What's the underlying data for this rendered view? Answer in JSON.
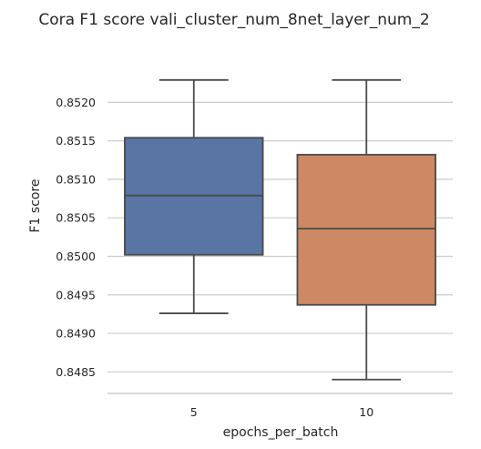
{
  "chart_data": {
    "type": "box",
    "title": "Cora F1 score vali_cluster_num_8net_layer_num_2",
    "xlabel": "epochs_per_batch",
    "ylabel": "F1 score",
    "categories": [
      "5",
      "10"
    ],
    "ylim": [
      0.84822,
      0.85295
    ],
    "yticks": [
      0.8485,
      0.849,
      0.8495,
      0.85,
      0.8505,
      0.851,
      0.8515,
      0.852
    ],
    "ytick_labels": [
      "0.8485",
      "0.8490",
      "0.8495",
      "0.8500",
      "0.8505",
      "0.8510",
      "0.8515",
      "0.8520"
    ],
    "grid": "horizontal",
    "boxes": [
      {
        "category": "5",
        "whisker_low": 0.84926,
        "q1": 0.85002,
        "median": 0.85079,
        "q3": 0.85154,
        "whisker_high": 0.85229,
        "color": "#5875a4"
      },
      {
        "category": "10",
        "whisker_low": 0.8484,
        "q1": 0.84937,
        "median": 0.85036,
        "q3": 0.85132,
        "whisker_high": 0.85229,
        "color": "#cc8963"
      }
    ]
  }
}
